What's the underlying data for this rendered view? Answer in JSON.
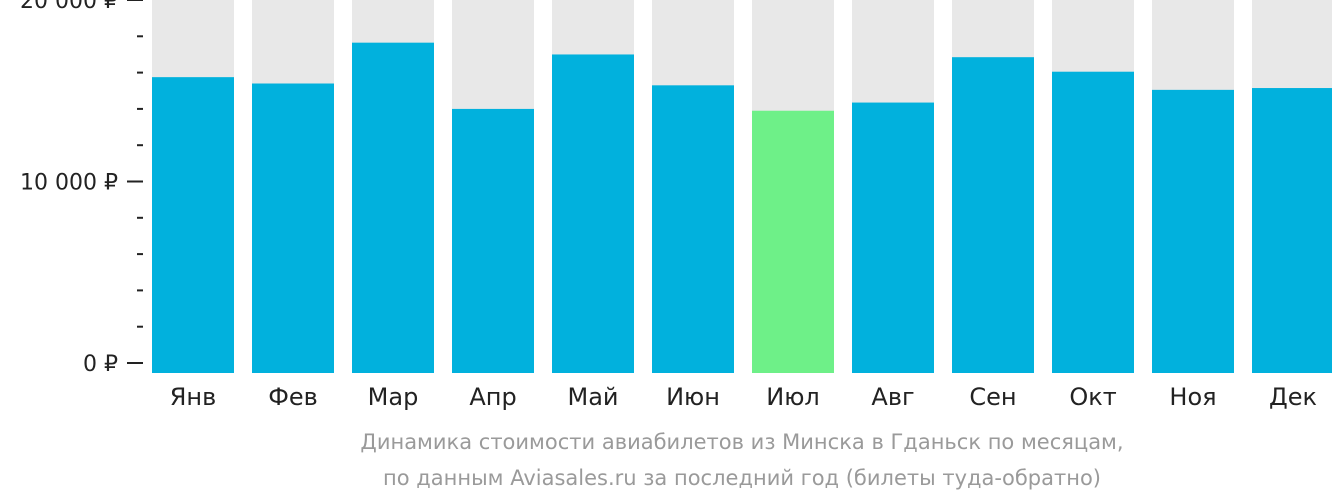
{
  "chart_data": {
    "type": "bar",
    "categories": [
      "Янв",
      "Фев",
      "Мар",
      "Апр",
      "Май",
      "Июн",
      "Июл",
      "Авг",
      "Сен",
      "Окт",
      "Ноя",
      "Дек"
    ],
    "values": [
      16300,
      15950,
      18200,
      14550,
      17550,
      15850,
      14450,
      14900,
      17400,
      16600,
      15600,
      15700
    ],
    "ylim": [
      0,
      20000
    ],
    "yticks": [
      {
        "value": 0,
        "label": "0 ₽"
      },
      {
        "value": 10000,
        "label": "10 000 ₽"
      },
      {
        "value": 20000,
        "label": "20 000 ₽"
      }
    ],
    "minor_tick_step": 2000,
    "highlight_index": 6,
    "colors": {
      "bar": "#01b1dd",
      "highlight": "#6ef088",
      "background_bar": "#e8e8e8",
      "axis": "#222222"
    },
    "caption_line1": "Динамика стоимости авиабилетов из Минска в Гданьск по месяцам,",
    "caption_line2": "по данным Aviasales.ru за последний год (билеты туда-обратно)"
  }
}
